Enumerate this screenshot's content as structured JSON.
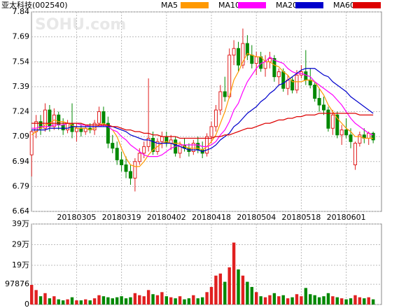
{
  "chart_data": [
    {
      "type": "candlestick",
      "title": "亚太科技(002540)",
      "watermark": "SOHU.com",
      "up_color": "#e02020",
      "down_color": "#008800",
      "grid": true,
      "ylim": [
        6.64,
        7.84
      ],
      "yticks": [
        6.64,
        6.79,
        6.94,
        7.09,
        7.24,
        7.39,
        7.54,
        7.69,
        7.84
      ],
      "categories": [
        null,
        null,
        null,
        null,
        null,
        null,
        null,
        null,
        null,
        null,
        "20180305",
        null,
        null,
        null,
        null,
        null,
        null,
        null,
        null,
        null,
        "20180319",
        null,
        null,
        null,
        null,
        null,
        null,
        null,
        null,
        null,
        "20180402",
        null,
        null,
        null,
        null,
        null,
        null,
        null,
        null,
        null,
        "20180418",
        null,
        null,
        null,
        null,
        null,
        null,
        null,
        null,
        null,
        "20180504",
        null,
        null,
        null,
        null,
        null,
        null,
        null,
        null,
        null,
        "20180518",
        null,
        null,
        null,
        null,
        null,
        null,
        null,
        null,
        null,
        "20180601",
        null,
        null,
        null,
        null,
        null,
        null
      ],
      "open": [
        6.98,
        7.12,
        7.18,
        7.14,
        7.25,
        7.15,
        7.22,
        7.16,
        7.13,
        7.17,
        7.12,
        7.14,
        7.12,
        7.14,
        7.13,
        7.17,
        7.24,
        7.17,
        7.05,
        7.02,
        6.95,
        6.92,
        6.88,
        6.84,
        6.94,
        6.99,
        7.03,
        7.08,
        7.0,
        7.06,
        7.09,
        7.05,
        7.07,
        6.99,
        7.04,
        7.02,
        7.0,
        7.05,
        7.01,
        6.99,
        7.09,
        7.15,
        7.25,
        7.36,
        7.33,
        7.58,
        7.62,
        7.52,
        7.65,
        7.58,
        7.53,
        7.57,
        7.5,
        7.54,
        7.56,
        7.45,
        7.48,
        7.38,
        7.43,
        7.37,
        7.46,
        7.48,
        7.43,
        7.4,
        7.32,
        7.28,
        7.25,
        7.14,
        7.22,
        7.1,
        7.13,
        7.1,
        6.92,
        7.05,
        7.1,
        7.08,
        7.11
      ],
      "high": [
        7.13,
        7.22,
        7.22,
        7.29,
        7.28,
        7.26,
        7.24,
        7.2,
        7.19,
        7.29,
        7.17,
        7.17,
        7.16,
        7.17,
        7.19,
        7.27,
        7.27,
        7.21,
        7.1,
        7.06,
        7.0,
        6.97,
        6.92,
        6.96,
        7.02,
        7.06,
        7.44,
        7.12,
        7.08,
        7.12,
        7.12,
        7.1,
        7.09,
        7.06,
        7.08,
        7.05,
        7.07,
        7.09,
        7.06,
        7.11,
        7.18,
        7.28,
        7.4,
        7.45,
        7.62,
        7.67,
        7.66,
        7.74,
        7.7,
        7.64,
        7.6,
        7.6,
        7.58,
        7.6,
        7.58,
        7.5,
        7.5,
        7.46,
        7.45,
        7.49,
        7.52,
        7.61,
        7.5,
        7.42,
        7.38,
        7.33,
        7.27,
        7.25,
        7.24,
        7.16,
        7.2,
        7.14,
        7.06,
        7.12,
        7.14,
        7.12,
        7.12
      ],
      "low": [
        6.85,
        7.08,
        7.1,
        7.12,
        7.12,
        7.13,
        7.13,
        7.1,
        7.11,
        7.08,
        7.06,
        7.09,
        7.1,
        7.11,
        7.1,
        7.15,
        7.15,
        7.02,
        6.99,
        6.92,
        6.88,
        6.84,
        6.8,
        6.76,
        6.92,
        6.96,
        7.0,
        6.98,
        6.98,
        7.02,
        7.03,
        7.01,
        6.97,
        6.96,
        7.0,
        6.97,
        6.98,
        6.99,
        6.96,
        6.97,
        7.05,
        7.12,
        7.22,
        7.3,
        7.32,
        7.52,
        7.48,
        7.5,
        7.55,
        7.5,
        7.46,
        7.48,
        7.45,
        7.5,
        7.42,
        7.4,
        7.36,
        7.34,
        7.35,
        7.35,
        7.44,
        7.4,
        7.38,
        7.3,
        7.24,
        7.22,
        7.12,
        7.1,
        7.08,
        7.04,
        7.08,
        7.02,
        6.89,
        7.03,
        7.05,
        7.04,
        7.05
      ],
      "close": [
        7.12,
        7.18,
        7.14,
        7.25,
        7.15,
        7.22,
        7.16,
        7.13,
        7.17,
        7.12,
        7.14,
        7.12,
        7.14,
        7.13,
        7.17,
        7.24,
        7.17,
        7.05,
        7.02,
        6.95,
        6.92,
        6.88,
        6.84,
        6.94,
        6.99,
        7.03,
        7.08,
        7.0,
        7.06,
        7.09,
        7.05,
        7.07,
        6.99,
        7.04,
        7.02,
        7.0,
        7.05,
        7.01,
        6.99,
        7.09,
        7.15,
        7.25,
        7.36,
        7.33,
        7.58,
        7.62,
        7.52,
        7.65,
        7.58,
        7.53,
        7.57,
        7.5,
        7.54,
        7.56,
        7.45,
        7.48,
        7.38,
        7.43,
        7.37,
        7.46,
        7.48,
        7.43,
        7.4,
        7.32,
        7.28,
        7.25,
        7.14,
        7.22,
        7.1,
        7.13,
        7.1,
        7.06,
        7.05,
        7.1,
        7.08,
        7.11,
        7.07
      ],
      "series": [
        {
          "name": "MA5",
          "color": "#ff9900",
          "values": [
            7.1,
            7.12,
            7.14,
            7.16,
            7.17,
            7.19,
            7.18,
            7.18,
            7.17,
            7.16,
            7.14,
            7.14,
            7.14,
            7.13,
            7.14,
            7.16,
            7.17,
            7.15,
            7.13,
            7.09,
            7.02,
            6.96,
            6.92,
            6.91,
            6.91,
            6.94,
            6.98,
            7.01,
            7.03,
            7.05,
            7.06,
            7.05,
            7.05,
            7.05,
            7.03,
            7.02,
            7.02,
            7.02,
            7.01,
            7.03,
            7.06,
            7.1,
            7.17,
            7.24,
            7.33,
            7.43,
            7.48,
            7.54,
            7.59,
            7.58,
            7.57,
            7.57,
            7.54,
            7.54,
            7.52,
            7.51,
            7.48,
            7.46,
            7.42,
            7.42,
            7.42,
            7.43,
            7.43,
            7.42,
            7.38,
            7.34,
            7.28,
            7.24,
            7.2,
            7.17,
            7.14,
            7.12,
            7.09,
            7.09,
            7.08,
            7.08,
            7.08
          ]
        },
        {
          "name": "MA10",
          "color": "#ff00ff",
          "values": [
            7.14,
            7.14,
            7.15,
            7.15,
            7.15,
            7.16,
            7.16,
            7.16,
            7.17,
            7.17,
            7.17,
            7.16,
            7.16,
            7.15,
            7.15,
            7.15,
            7.16,
            7.15,
            7.13,
            7.12,
            7.09,
            7.07,
            7.04,
            7.02,
            7.0,
            6.98,
            6.97,
            6.97,
            6.97,
            6.98,
            7.0,
            7.02,
            7.03,
            7.04,
            7.04,
            7.04,
            7.04,
            7.04,
            7.03,
            7.03,
            7.04,
            7.06,
            7.1,
            7.13,
            7.18,
            7.25,
            7.29,
            7.36,
            7.42,
            7.46,
            7.5,
            7.53,
            7.54,
            7.57,
            7.55,
            7.54,
            7.53,
            7.5,
            7.48,
            7.47,
            7.47,
            7.46,
            7.45,
            7.42,
            7.4,
            7.38,
            7.36,
            7.34,
            7.31,
            7.28,
            7.24,
            7.2,
            7.17,
            7.15,
            7.13,
            7.11,
            7.1
          ]
        },
        {
          "name": "MA20",
          "color": "#0000cc",
          "values": [
            7.13,
            7.13,
            7.13,
            7.13,
            7.14,
            7.14,
            7.14,
            7.14,
            7.14,
            7.15,
            7.15,
            7.15,
            7.15,
            7.15,
            7.15,
            7.15,
            7.15,
            7.15,
            7.15,
            7.14,
            7.13,
            7.12,
            7.1,
            7.09,
            7.08,
            7.07,
            7.07,
            7.06,
            7.05,
            7.05,
            7.05,
            7.05,
            7.04,
            7.03,
            7.02,
            7.01,
            7.01,
            7.01,
            7.0,
            7.01,
            7.02,
            7.04,
            7.07,
            7.09,
            7.11,
            7.15,
            7.17,
            7.2,
            7.23,
            7.25,
            7.27,
            7.3,
            7.32,
            7.35,
            7.37,
            7.4,
            7.41,
            7.43,
            7.45,
            7.47,
            7.49,
            7.5,
            7.5,
            7.5,
            7.48,
            7.46,
            7.45,
            7.42,
            7.4,
            7.38,
            7.36,
            7.33,
            7.31,
            7.29,
            7.27,
            7.25,
            7.23
          ]
        },
        {
          "name": "MA60",
          "color": "#dd0000",
          "values": [
            7.17,
            7.17,
            7.17,
            7.17,
            7.17,
            7.17,
            7.17,
            7.17,
            7.17,
            7.17,
            7.17,
            7.17,
            7.16,
            7.16,
            7.16,
            7.16,
            7.16,
            7.16,
            7.15,
            7.15,
            7.14,
            7.13,
            7.13,
            7.12,
            7.12,
            7.11,
            7.11,
            7.1,
            7.1,
            7.09,
            7.09,
            7.09,
            7.09,
            7.08,
            7.08,
            7.08,
            7.08,
            7.08,
            7.08,
            7.08,
            7.08,
            7.09,
            7.09,
            7.1,
            7.1,
            7.11,
            7.12,
            7.13,
            7.14,
            7.14,
            7.15,
            7.16,
            7.17,
            7.17,
            7.18,
            7.19,
            7.19,
            7.2,
            7.2,
            7.21,
            7.21,
            7.22,
            7.22,
            7.22,
            7.23,
            7.23,
            7.23,
            7.23,
            7.23,
            7.23,
            7.23,
            7.23,
            7.23,
            7.22,
            7.22,
            7.22,
            7.22
          ]
        }
      ]
    },
    {
      "type": "bar",
      "grid": true,
      "ylim": [
        0,
        390000
      ],
      "yticks": [
        0,
        97876,
        {
          "value": 190000,
          "label": "19万"
        },
        {
          "value": 290000,
          "label": "29万"
        },
        {
          "value": 390000,
          "label": "39万"
        }
      ],
      "values": [
        95000,
        70000,
        40000,
        55000,
        30000,
        40000,
        25000,
        20000,
        25000,
        35000,
        20000,
        20000,
        25000,
        20000,
        30000,
        45000,
        40000,
        35000,
        30000,
        35000,
        40000,
        30000,
        35000,
        55000,
        45000,
        40000,
        70000,
        50000,
        45000,
        60000,
        40000,
        35000,
        30000,
        40000,
        25000,
        30000,
        45000,
        30000,
        35000,
        60000,
        85000,
        140000,
        150000,
        110000,
        180000,
        300000,
        170000,
        140000,
        110000,
        85000,
        60000,
        40000,
        35000,
        45000,
        55000,
        40000,
        45000,
        30000,
        35000,
        50000,
        40000,
        80000,
        50000,
        45000,
        35000,
        40000,
        55000,
        40000,
        35000,
        30000,
        25000,
        30000,
        45000,
        35000,
        30000,
        35000,
        25000
      ]
    }
  ]
}
